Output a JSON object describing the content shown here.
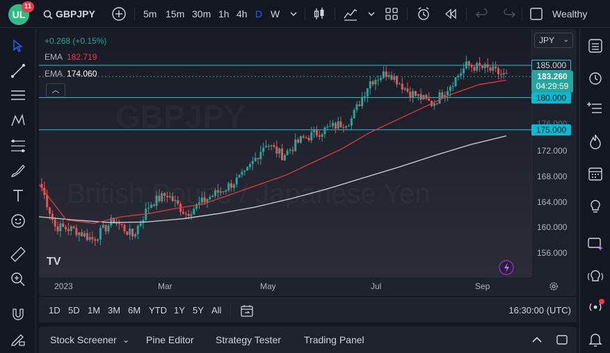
{
  "app": {
    "notifications": "11",
    "logo_text": "UL"
  },
  "toolbar": {
    "symbol": "GBPJPY",
    "intervals": [
      "5m",
      "15m",
      "30m",
      "1h",
      "4h",
      "D",
      "W"
    ],
    "active_interval": "D",
    "account": "Wealthy Educ"
  },
  "legend": {
    "change": "+0.268 (+0.15%)",
    "ema_label": "EMA",
    "ema1_value": "182.719",
    "ema2_value": "174.060"
  },
  "watermark": {
    "symbol": "GBPJPY",
    "name": "British Pound / Japanese Yen"
  },
  "price_axis": {
    "currency": "JPY",
    "ticks": [
      "185.000",
      "180.000",
      "176.000",
      "175.000",
      "172.000",
      "168.000",
      "164.000",
      "160.000",
      "156.000"
    ],
    "levels": [
      "185.000",
      "180.000",
      "175.000"
    ],
    "last_price": "183.260",
    "countdown": "04:29:59"
  },
  "time_axis": {
    "labels": [
      "2023",
      "Mar",
      "May",
      "Jul",
      "Sep"
    ]
  },
  "range_bar": {
    "ranges": [
      "1D",
      "5D",
      "1M",
      "3M",
      "6M",
      "YTD",
      "1Y",
      "5Y",
      "All"
    ],
    "clock": "16:30:00 (UTC)"
  },
  "bottom_panel": {
    "tabs": [
      "Stock Screener",
      "Pine Editor",
      "Strategy Tester",
      "Trading Panel"
    ]
  },
  "colors": {
    "up": "#26a69a",
    "down": "#ef5350",
    "ema_fast": "#e53935",
    "ema_slow": "#d1d4dc",
    "level": "#26c6da",
    "accent": "#2962ff"
  },
  "chart_data": {
    "type": "candlestick",
    "symbol": "GBPJPY",
    "interval": "D",
    "x_range": [
      "2023-01",
      "2023-09"
    ],
    "ylim": [
      154,
      188
    ],
    "close_path": [
      {
        "date": "2023-01-03",
        "close": 166.0
      },
      {
        "date": "2023-01-10",
        "close": 160.0
      },
      {
        "date": "2023-01-20",
        "close": 159.5
      },
      {
        "date": "2023-01-30",
        "close": 158.0
      },
      {
        "date": "2023-02-10",
        "close": 161.0
      },
      {
        "date": "2023-02-20",
        "close": 158.5
      },
      {
        "date": "2023-03-01",
        "close": 163.5
      },
      {
        "date": "2023-03-10",
        "close": 165.0
      },
      {
        "date": "2023-03-20",
        "close": 162.0
      },
      {
        "date": "2023-04-01",
        "close": 164.5
      },
      {
        "date": "2023-04-10",
        "close": 166.0
      },
      {
        "date": "2023-04-20",
        "close": 168.0
      },
      {
        "date": "2023-05-01",
        "close": 173.0
      },
      {
        "date": "2023-05-10",
        "close": 171.0
      },
      {
        "date": "2023-05-20",
        "close": 173.5
      },
      {
        "date": "2023-06-01",
        "close": 175.0
      },
      {
        "date": "2023-06-15",
        "close": 176.5
      },
      {
        "date": "2023-06-25",
        "close": 182.5
      },
      {
        "date": "2023-07-05",
        "close": 184.0
      },
      {
        "date": "2023-07-15",
        "close": 181.0
      },
      {
        "date": "2023-07-28",
        "close": 179.0
      },
      {
        "date": "2023-08-05",
        "close": 181.5
      },
      {
        "date": "2023-08-15",
        "close": 185.0
      },
      {
        "date": "2023-08-25",
        "close": 184.5
      },
      {
        "date": "2023-09-05",
        "close": 183.3
      }
    ],
    "ema_fast_path": [
      166.5,
      161.0,
      160.5,
      161.5,
      162.0,
      162.8,
      163.5,
      165.0,
      166.5,
      168.0,
      170.0,
      172.0,
      174.5,
      176.5,
      178.5,
      180.5,
      182.0,
      182.7
    ],
    "ema_slow_path": [
      161.5,
      161.0,
      160.6,
      160.7,
      161.2,
      162.0,
      163.0,
      164.3,
      165.8,
      167.5,
      169.2,
      171.0,
      172.7,
      174.06
    ],
    "horizontal_levels": [
      185.0,
      180.0,
      175.0
    ],
    "last_price": 183.26
  }
}
